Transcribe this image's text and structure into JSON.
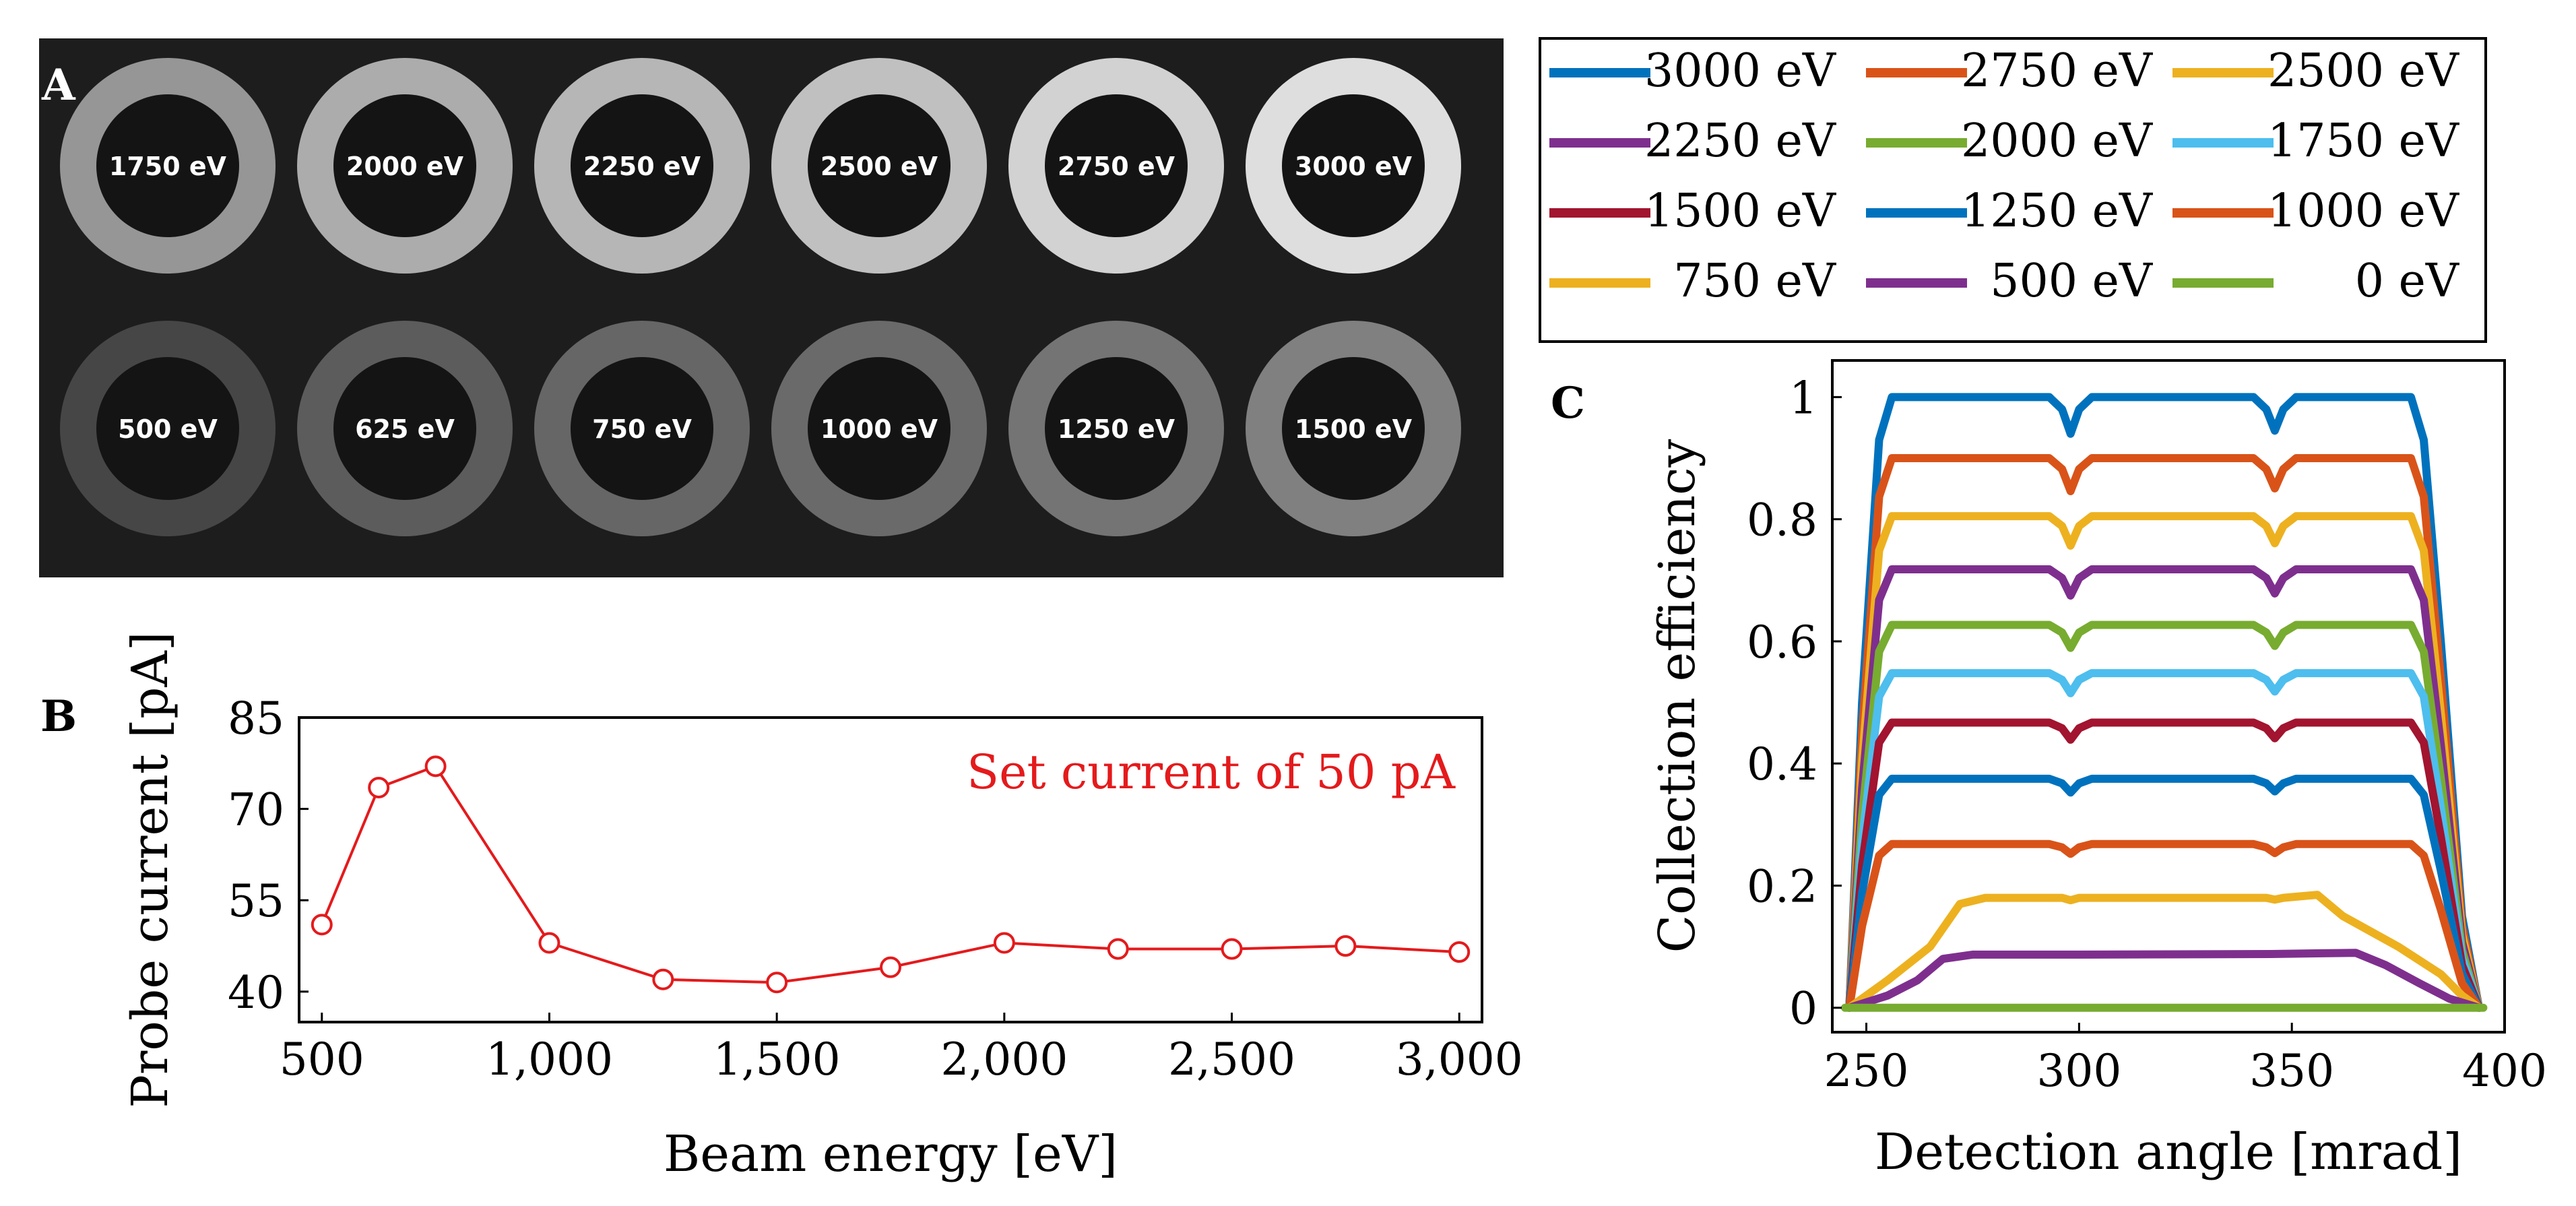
{
  "panel_labels": {
    "a": "A",
    "b": "B",
    "c": "C"
  },
  "colors": {
    "micrograph_bg": "#1d1d1d",
    "curve_b": "#e41a1c",
    "series": {
      "3000": "#0072bd",
      "2750": "#d95319",
      "2500": "#edb120",
      "2250": "#7e2f8e",
      "2000": "#77ac30",
      "1750": "#4dbeee",
      "1500": "#a2142f",
      "1250": "#0072bd",
      "1000": "#d95319",
      "750": "#edb120",
      "500": "#7e2f8e",
      "0": "#77ac30"
    }
  },
  "panel_a": {
    "rings": [
      {
        "label": "1750 eV",
        "brightness": 150
      },
      {
        "label": "2000 eV",
        "brightness": 172
      },
      {
        "label": "2250 eV",
        "brightness": 182
      },
      {
        "label": "2500 eV",
        "brightness": 192
      },
      {
        "label": "2750 eV",
        "brightness": 210
      },
      {
        "label": "3000 eV",
        "brightness": 222
      },
      {
        "label": "500 eV",
        "brightness": 70
      },
      {
        "label": "625 eV",
        "brightness": 92
      },
      {
        "label": "750 eV",
        "brightness": 102
      },
      {
        "label": "1000 eV",
        "brightness": 106
      },
      {
        "label": "1250 eV",
        "brightness": 116
      },
      {
        "label": "1500 eV",
        "brightness": 128
      }
    ]
  },
  "chart_data": [
    {
      "type": "line",
      "panel": "B",
      "title": "",
      "xlabel": "Beam energy [eV]",
      "ylabel": "Probe current [pA]",
      "annotation": "Set current of 50 pA",
      "xlim": [
        450,
        3050
      ],
      "ylim": [
        35,
        85
      ],
      "xticks": [
        500,
        1000,
        1500,
        2000,
        2500,
        3000
      ],
      "xtick_labels": [
        "500",
        "1,000",
        "1,500",
        "2,000",
        "2,500",
        "3,000"
      ],
      "yticks": [
        40,
        55,
        70,
        85
      ],
      "ytick_labels": [
        "40",
        "55",
        "70",
        "85"
      ],
      "x": [
        500,
        625,
        750,
        1000,
        1250,
        1500,
        1750,
        2000,
        2250,
        2500,
        2750,
        3000
      ],
      "values": [
        51,
        73.5,
        77,
        48,
        42,
        41.5,
        44,
        48,
        47,
        47,
        47.5,
        46.5
      ],
      "marker": "circle"
    },
    {
      "type": "line",
      "panel": "C",
      "title": "",
      "xlabel": "Detection angle [mrad]",
      "ylabel": "Collection efficiency",
      "xlim": [
        242,
        400
      ],
      "ylim": [
        -0.04,
        1.06
      ],
      "xticks": [
        250,
        300,
        350,
        400
      ],
      "xtick_labels": [
        "250",
        "300",
        "350",
        "400"
      ],
      "yticks": [
        0,
        0.2,
        0.4,
        0.6,
        0.8,
        1
      ],
      "ytick_labels": [
        "0",
        "0.2",
        "0.4",
        "0.6",
        "0.8",
        "1"
      ],
      "legend_position": "above",
      "series": [
        {
          "name": "3000 eV",
          "key": "3000",
          "plateau": 1.0
        },
        {
          "name": "2750 eV",
          "key": "2750",
          "plateau": 0.9
        },
        {
          "name": "2500 eV",
          "key": "2500",
          "plateau": 0.805
        },
        {
          "name": "2250 eV",
          "key": "2250",
          "plateau": 0.718
        },
        {
          "name": "2000 eV",
          "key": "2000",
          "plateau": 0.627
        },
        {
          "name": "1750 eV",
          "key": "1750",
          "plateau": 0.548
        },
        {
          "name": "1500 eV",
          "key": "1500",
          "plateau": 0.467
        },
        {
          "name": "1250 eV",
          "key": "1250",
          "plateau": 0.375
        },
        {
          "name": "1000 eV",
          "key": "1000",
          "plateau": 0.268
        },
        {
          "name": "750 eV",
          "key": "750",
          "plateau": 0.18
        },
        {
          "name": "500 eV",
          "key": "500",
          "plateau": 0.087
        },
        {
          "name": "0 eV",
          "key": "0",
          "plateau": 0.0
        }
      ],
      "series_points": {
        "upper": {
          "x": [
            246,
            249,
            253,
            256,
            293,
            296,
            298,
            300,
            303,
            341,
            344,
            346,
            348,
            351,
            378,
            381,
            385,
            390,
            394
          ],
          "rel": [
            0.0,
            0.5,
            0.93,
            1.0,
            1.0,
            0.98,
            0.94,
            0.98,
            1.0,
            1.0,
            0.98,
            0.945,
            0.98,
            1.0,
            1.0,
            0.93,
            0.6,
            0.15,
            0.0
          ]
        },
        "750": {
          "x": [
            246,
            255,
            265,
            272,
            278,
            296,
            298,
            300,
            344,
            346,
            348,
            356,
            362,
            375,
            385,
            390,
            394
          ],
          "y": [
            0.0,
            0.045,
            0.1,
            0.17,
            0.18,
            0.18,
            0.176,
            0.18,
            0.18,
            0.177,
            0.18,
            0.185,
            0.15,
            0.1,
            0.055,
            0.02,
            0.0
          ]
        },
        "500": {
          "x": [
            246,
            255,
            262,
            268,
            275,
            300,
            345,
            365,
            372,
            380,
            387,
            394
          ],
          "y": [
            0.0,
            0.02,
            0.045,
            0.08,
            0.087,
            0.087,
            0.088,
            0.09,
            0.07,
            0.04,
            0.015,
            0.0
          ]
        },
        "0": {
          "x": [
            245,
            395
          ],
          "y": [
            0.0,
            0.0
          ]
        }
      }
    }
  ]
}
